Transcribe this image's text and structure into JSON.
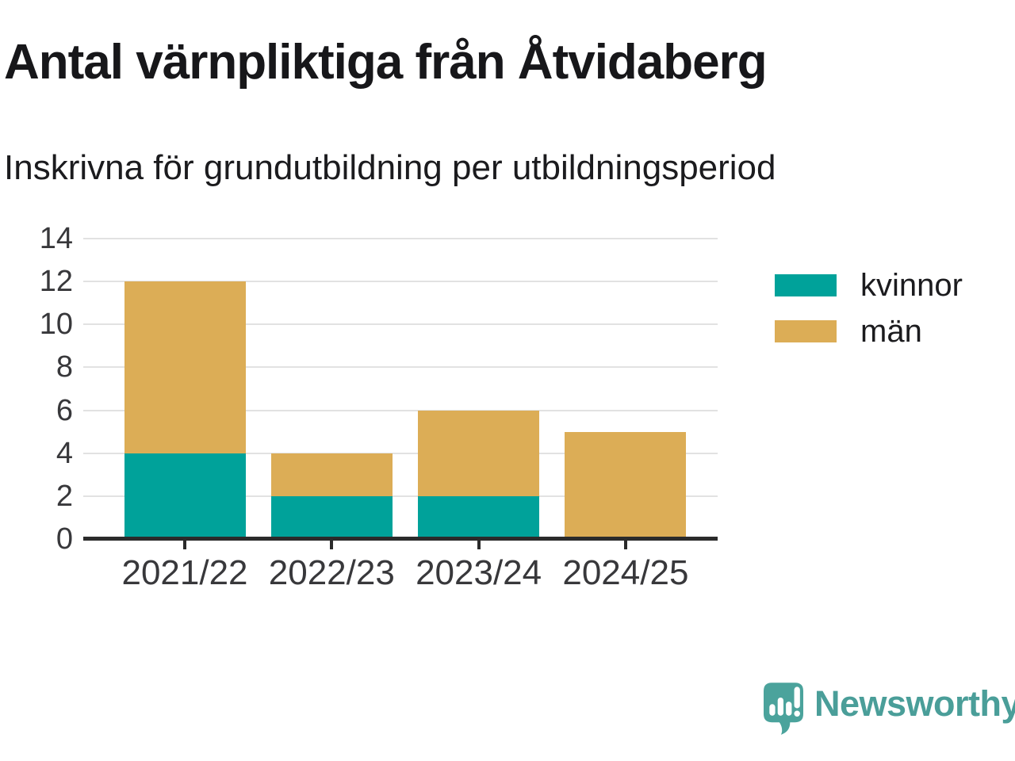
{
  "chart_data": {
    "type": "bar",
    "stacked": true,
    "title": "Antal värnpliktiga från Åtvidaberg",
    "subtitle": "Inskrivna för grundutbildning per utbildningsperiod",
    "categories": [
      "2021/22",
      "2022/23",
      "2023/24",
      "2024/25"
    ],
    "series": [
      {
        "name": "kvinnor",
        "color": "#00a29a",
        "values": [
          4,
          2,
          2,
          0
        ]
      },
      {
        "name": "män",
        "color": "#dcad56",
        "values": [
          8,
          2,
          4,
          5
        ]
      }
    ],
    "totals": [
      12,
      4,
      6,
      5
    ],
    "xlabel": "",
    "ylabel": "",
    "ylim": [
      0,
      14
    ],
    "yticks": [
      0,
      2,
      4,
      6,
      8,
      10,
      12,
      14
    ],
    "grid": true,
    "legend_position": "right-top"
  },
  "branding": {
    "name": "Newsworthy",
    "icon": "bar-chart-speech-bubble-icon",
    "icon_color": "#4ba39c",
    "text_color": "#4a9e99"
  },
  "colors": {
    "background": "#ffffff",
    "title_text": "#17171a",
    "axis_text": "#38383b",
    "gridline": "#e2e2e2",
    "axis_line": "#2b2b2b"
  }
}
